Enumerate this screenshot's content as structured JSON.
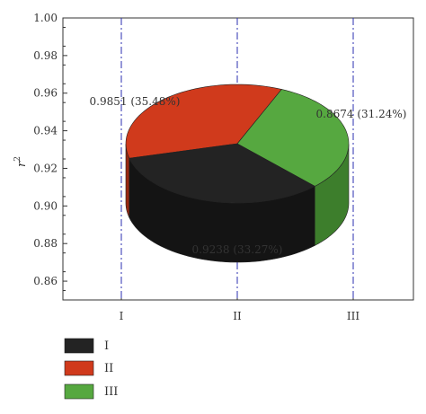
{
  "chart_data": {
    "type": "pie",
    "style": "3d-exploded-disk",
    "ylabel": "r²",
    "ylim": [
      0.85,
      1.0
    ],
    "yticks": [
      "0.86",
      "0.88",
      "0.90",
      "0.92",
      "0.94",
      "0.96",
      "0.98",
      "1.00"
    ],
    "xticks": [
      "I",
      "II",
      "III"
    ],
    "categories": [
      "I",
      "II",
      "III"
    ],
    "values": [
      0.9238,
      0.9851,
      0.8674
    ],
    "percents": [
      33.27,
      35.48,
      31.24
    ],
    "data_labels": [
      "0.9238 (33.27%)",
      "0.9851 (35.48%)",
      "0.8674 (31.24%)"
    ],
    "colors": [
      "#232323",
      "#d03a1c",
      "#56a840"
    ],
    "side_colors": [
      "#141414",
      "#9a2812",
      "#3d7e2c"
    ],
    "guide_line_color": "#2b2fb0",
    "grid": false,
    "legend": {
      "placement": "bottom-left",
      "items": [
        "I",
        "II",
        "III"
      ]
    }
  }
}
